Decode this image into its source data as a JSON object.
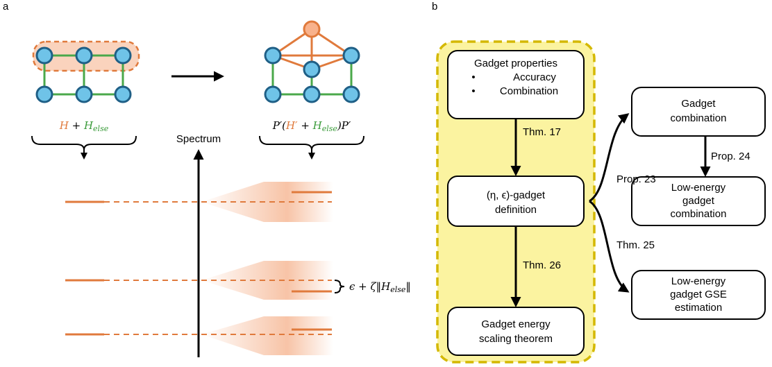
{
  "panel_labels": {
    "a": "a",
    "b": "b"
  },
  "panel_a": {
    "spectrum_label": "Spectrum",
    "left_formula": {
      "h": "H",
      "plus": " + ",
      "h_else": "H",
      "else_sub": "else"
    },
    "right_formula": {
      "p_open": "P′(",
      "h_prime": "H′",
      "plus": " + ",
      "h_else": "H",
      "else_sub": "else",
      "p_close": ")P′"
    },
    "bound_formula": {
      "text": "ϵ + ζ‖H",
      "sub": "else",
      "close": "‖"
    },
    "colors": {
      "orange": "#e07a3c",
      "green": "#4aa84a",
      "node_fill": "#6fc3e8",
      "node_stroke": "#1f5f86",
      "shade": "#f7c9ad"
    }
  },
  "panel_b": {
    "boxes": {
      "props_title": "Gadget properties",
      "props_item1": "Accuracy",
      "props_item2": "Combination",
      "gadget_def_line1": "(η, ϵ)-gadget",
      "gadget_def_line2": "definition",
      "scaling_line1": "Gadget energy",
      "scaling_line2": "scaling theorem",
      "comb_line1": "Gadget",
      "comb_line2": "combination",
      "low_comb_line1": "Low-energy",
      "low_comb_line2": "gadget",
      "low_comb_line3": "combination",
      "gse_line1": "Low-energy",
      "gse_line2": "gadget GSE",
      "gse_line3": "estimation"
    },
    "arrows": {
      "thm17": "Thm. 17",
      "thm26": "Thm. 26",
      "prop23": "Prop. 23",
      "prop24": "Prop. 24",
      "thm25": "Thm. 25"
    },
    "colors": {
      "highlight_fill": "#fbf3a0",
      "highlight_border": "#d4b800"
    }
  }
}
